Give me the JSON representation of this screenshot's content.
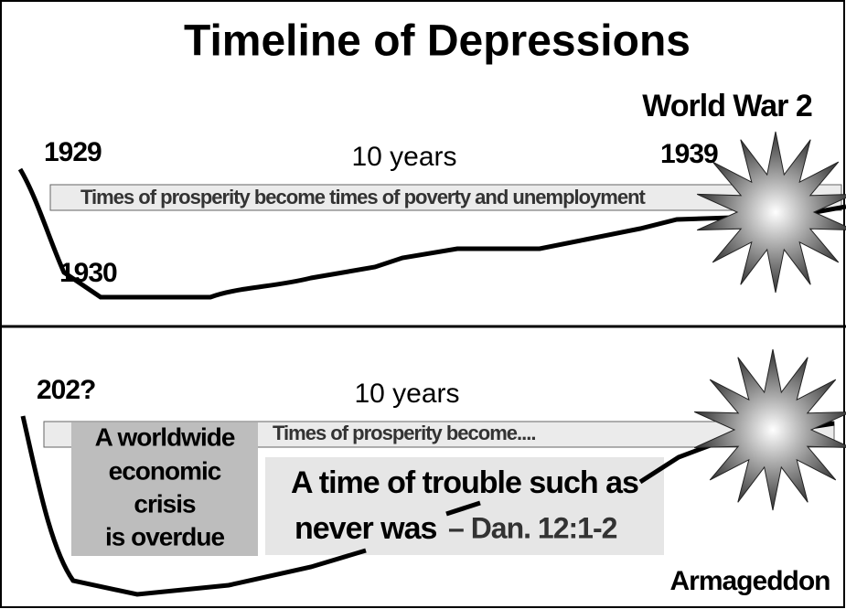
{
  "title": "Timeline of Depressions",
  "panels": [
    {
      "event": "World War 2",
      "start_year": "1929",
      "duration": "10 years",
      "end_year": "1939",
      "banner": "Times of prosperity become times of poverty and unemployment",
      "low_year": "1930"
    },
    {
      "start_year": "202?",
      "duration": "10 years",
      "banner": "Times of prosperity become....",
      "note": [
        "A worldwide",
        "economic",
        "crisis",
        "is overdue"
      ],
      "quote": [
        "A time of trouble such as",
        "never was",
        "– Dan. 12:1-2"
      ],
      "event": "Armageddon"
    }
  ]
}
